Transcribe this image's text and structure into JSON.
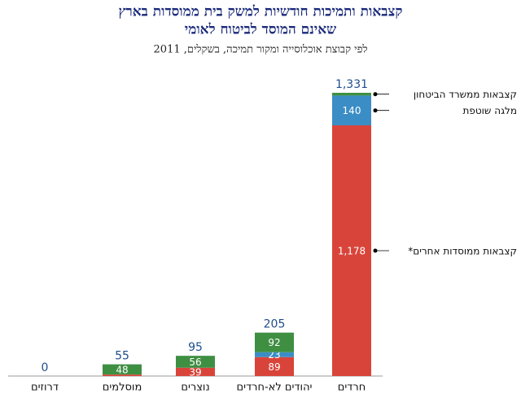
{
  "chart_data": {
    "type": "bar",
    "title": [
      "קצבאות ותמיכות חודשיות למשק בית ממוסדות בארץ",
      "שאינם המוסד לביטוח לאומי"
    ],
    "subtitle": "לפי קבוצת אוכלוסייה ומקור תמיכה, בשקלים, 2011",
    "categories": [
      "דרוזים",
      "מוסלמים",
      "נוצרים",
      "יהודים לא-חרדים",
      "חרדים"
    ],
    "stacked": true,
    "series": [
      {
        "name": "קצבאות ממוסדות אחרים*",
        "color": "#d9443a",
        "values": [
          0,
          7,
          39,
          89,
          1178
        ],
        "value_labels": [
          null,
          null,
          "39",
          "89",
          "1,178"
        ]
      },
      {
        "name": "מלגה שוטפת",
        "color": "#3b8dc6",
        "values": [
          0,
          0,
          0,
          23,
          140
        ],
        "value_labels": [
          null,
          null,
          null,
          "23",
          "140"
        ]
      },
      {
        "name": "קצבאות ממשרד הביטחון",
        "color": "#3f8f43",
        "values": [
          0,
          48,
          56,
          92,
          13
        ],
        "value_labels": [
          null,
          "48",
          "56",
          "92",
          null
        ]
      }
    ],
    "totals": {
      "values": [
        0,
        55,
        95,
        205,
        1331
      ],
      "value_labels": [
        "0",
        "55",
        "95",
        "205",
        "1,331"
      ]
    }
  }
}
